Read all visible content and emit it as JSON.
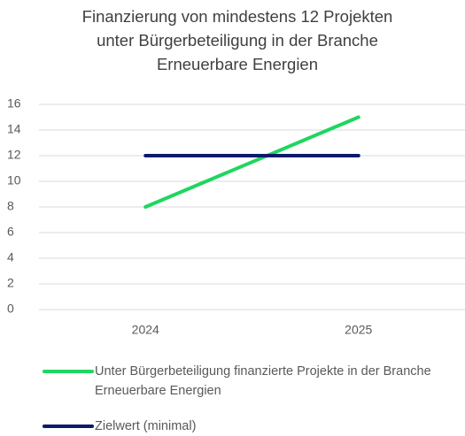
{
  "chart_data": {
    "type": "line",
    "title": [
      "Finanzierung von mindestens 12 Projekten",
      "unter Bürgerbeteiligung in der Branche",
      "Erneuerbare Energien"
    ],
    "categories": [
      "2024",
      "2025"
    ],
    "series": [
      {
        "name": "Unter Bürgerbeteiligung finanzierte Projekte in der Branche Erneuerbare Energien",
        "color": "#1fd65f",
        "values": [
          8,
          15
        ]
      },
      {
        "name": "Zielwert (minimal)",
        "color": "#0b1a6b",
        "values": [
          12,
          12
        ]
      }
    ],
    "ylim": [
      0,
      16
    ],
    "yticks": [
      0,
      2,
      4,
      6,
      8,
      10,
      12,
      14,
      16
    ],
    "grid": true
  }
}
